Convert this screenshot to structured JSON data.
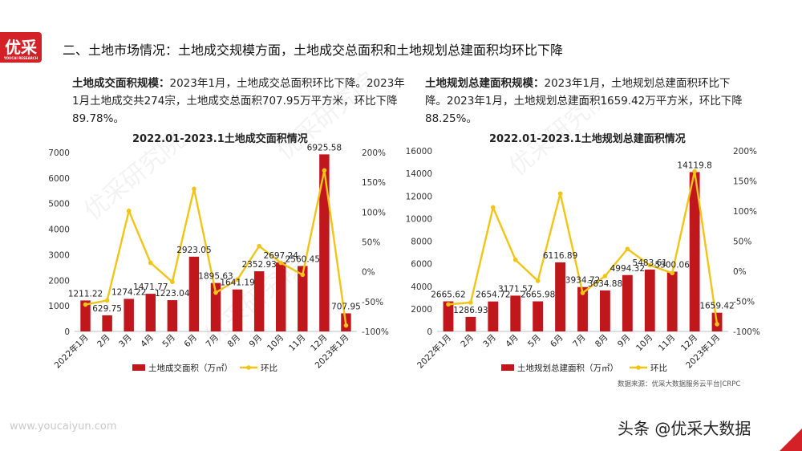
{
  "logo": {
    "text": "优采",
    "sub": "YOUCAI RESEARCH"
  },
  "heading": "二、土地市场情况：土地成交规模方面，土地成交总面积和土地规划总建面积均环比下降",
  "left_desc": {
    "bold": "土地成交面积规模：",
    "text": "2023年1月，土地成交总面积环比下降。2023年1月土地成交共274宗，土地成交总面积707.95万平方米，环比下降89.78%。"
  },
  "right_desc": {
    "bold": "土地规划总建面积规模：",
    "text": "2023年1月，土地规划总建面积环比下降。2023年1月，土地规划总建面积1659.42万平方米，环比下降88.25%。"
  },
  "watermark": "优采研究院",
  "source": "数据来源：优采大数据服务云平台|CRPC",
  "site": "www.youcaiyun.com",
  "toutiao": "头条 @优采大数据",
  "colors": {
    "bar": "#c0171d",
    "line": "#f2c417"
  },
  "chart_data": [
    {
      "type": "bar+line",
      "title": "2022.01-2023.1土地成交面积情况",
      "categories": [
        "2022年1月",
        "2月",
        "3月",
        "4月",
        "5月",
        "6月",
        "7月",
        "8月",
        "9月",
        "10月",
        "11月",
        "12月",
        "2023年1月"
      ],
      "series": [
        {
          "name": "土地成交面积（万㎡）",
          "type": "bar",
          "axis": "left",
          "values": [
            1211.22,
            629.75,
            1274.22,
            1471.77,
            1223.04,
            2923.05,
            1895.63,
            1641.19,
            2352.93,
            2697.24,
            2560.45,
            6925.58,
            707.95
          ],
          "labels": [
            "1211.22",
            "629.75",
            "1274.22",
            "1471.77",
            "1223.04",
            "2923.05",
            "1895.63",
            "1641.19",
            "2352.93",
            "2697.24",
            "2560.45",
            "6925.58",
            "707.95"
          ]
        },
        {
          "name": "环比",
          "type": "line",
          "axis": "right",
          "values": [
            -55,
            -48,
            102,
            15,
            -17,
            139,
            -35,
            -13,
            43,
            15,
            -5,
            170,
            -90
          ]
        }
      ],
      "ylim_left": [
        0,
        7000
      ],
      "yticks_left": [
        "0",
        "1000",
        "2000",
        "3000",
        "4000",
        "5000",
        "6000",
        "7000"
      ],
      "ylim_right": [
        -100,
        200
      ],
      "yticks_right": [
        "-100%",
        "-50%",
        "0%",
        "50%",
        "100%",
        "150%",
        "200%"
      ],
      "legend": "bottom"
    },
    {
      "type": "bar+line",
      "title": "2022.01-2023.1土地规划总建面积情况",
      "categories": [
        "2022年1月",
        "2月",
        "3月",
        "4月",
        "5月",
        "6月",
        "7月",
        "8月",
        "9月",
        "10月",
        "11月",
        "12月",
        "2023年1月"
      ],
      "series": [
        {
          "name": "土地规划总建面积（万㎡）",
          "type": "bar",
          "axis": "left",
          "values": [
            2665.62,
            1286.93,
            2654.72,
            3171.57,
            2665.98,
            6116.89,
            3934.72,
            3634.88,
            4994.32,
            5483.61,
            5300.06,
            14119.8,
            1659.42
          ],
          "labels": [
            "2665.62",
            "1286.93",
            "2654.72",
            "3171.57",
            "2665.98",
            "6116.89",
            "3934.72",
            "3634.88",
            "4994.32",
            "5483.61",
            "5300.06",
            "14119.8",
            "1659.42"
          ]
        },
        {
          "name": "环比",
          "type": "line",
          "axis": "right",
          "values": [
            -55,
            -52,
            106,
            19,
            -16,
            129,
            -36,
            -8,
            37,
            10,
            -3,
            166,
            -88
          ]
        }
      ],
      "ylim_left": [
        0,
        16000
      ],
      "yticks_left": [
        "0",
        "2000",
        "4000",
        "6000",
        "8000",
        "10000",
        "12000",
        "14000",
        "16000"
      ],
      "ylim_right": [
        -100,
        200
      ],
      "yticks_right": [
        "-100%",
        "-50%",
        "0%",
        "50%",
        "100%",
        "150%",
        "200%"
      ],
      "legend": "bottom"
    }
  ]
}
